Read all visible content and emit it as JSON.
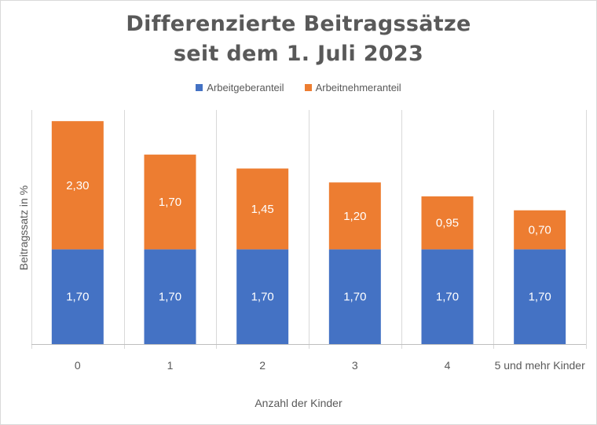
{
  "chart_data": {
    "type": "bar",
    "stacked": true,
    "title": "Differenzierte  Beitragssätze\nseit  dem 1. Juli 2023",
    "xlabel": "Anzahl der Kinder",
    "ylabel": "Beitragssatz in %",
    "ylim": [
      0,
      4.2
    ],
    "categories": [
      "0",
      "1",
      "2",
      "3",
      "4",
      "5 und mehr Kinder"
    ],
    "series": [
      {
        "name": "Arbeitgeberanteil",
        "color": "#4472c4",
        "values": [
          1.7,
          1.7,
          1.7,
          1.7,
          1.7,
          1.7
        ],
        "labels": [
          "1,70",
          "1,70",
          "1,70",
          "1,70",
          "1,70",
          "1,70"
        ]
      },
      {
        "name": "Arbeitnehmeranteil",
        "color": "#ed7d31",
        "values": [
          2.3,
          1.7,
          1.45,
          1.2,
          0.95,
          0.7
        ],
        "labels": [
          "2,30",
          "1,70",
          "1,45",
          "1,20",
          "0,95",
          "0,70"
        ]
      }
    ],
    "grid": "vertical",
    "legend": "top-center"
  }
}
